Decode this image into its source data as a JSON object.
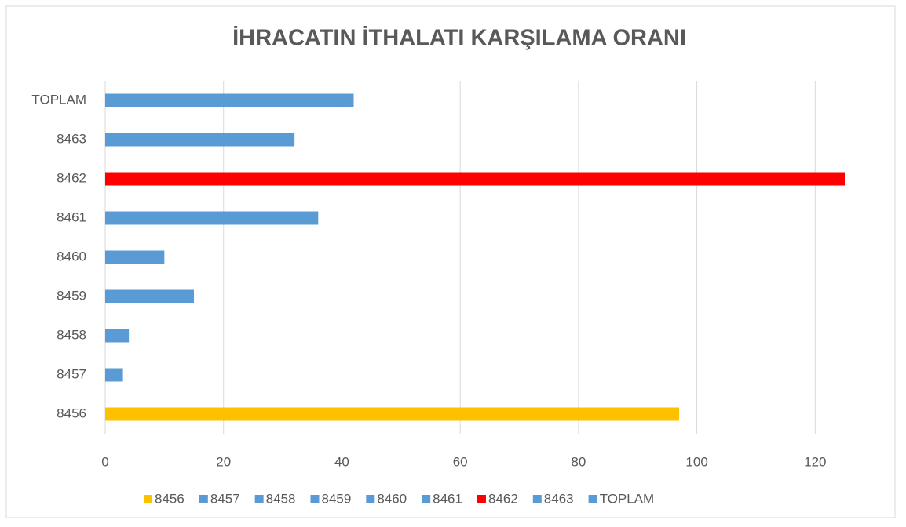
{
  "chart_data": {
    "type": "bar",
    "orientation": "horizontal",
    "title": "İHRACATIN İTHALATI KARŞILAMA ORANI",
    "categories": [
      "8456",
      "8457",
      "8458",
      "8459",
      "8460",
      "8461",
      "8462",
      "8463",
      "TOPLAM"
    ],
    "values": [
      97,
      3,
      4,
      15,
      10,
      36,
      125,
      32,
      42
    ],
    "colors": [
      "#ffc000",
      "#5b9bd5",
      "#5b9bd5",
      "#5b9bd5",
      "#5b9bd5",
      "#5b9bd5",
      "#ff0000",
      "#5b9bd5",
      "#5b9bd5"
    ],
    "xlim": [
      0,
      125
    ],
    "xticks": [
      0,
      20,
      40,
      60,
      80,
      100,
      120
    ],
    "grid": true,
    "legend": "bottom"
  }
}
